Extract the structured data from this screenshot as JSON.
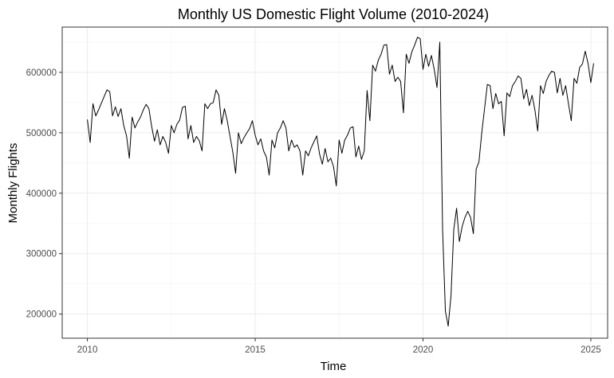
{
  "chart_data": {
    "type": "line",
    "title": "Monthly US Domestic Flight Volume (2010-2024)",
    "xlabel": "Time",
    "ylabel": "Monthly Flights",
    "xlim": [
      2009.25,
      2025.5
    ],
    "ylim": [
      160000,
      675000
    ],
    "x_ticks": [
      2010,
      2015,
      2020,
      2025
    ],
    "x_tick_labels": [
      "2010",
      "2015",
      "2020",
      "2025"
    ],
    "y_ticks": [
      200000,
      300000,
      400000,
      500000,
      600000
    ],
    "y_tick_labels": [
      "200000",
      "300000",
      "400000",
      "500000",
      "600000"
    ],
    "grid": true,
    "start": "2010-01",
    "frequency": "monthly",
    "series": [
      {
        "color": "#000000",
        "values": [
          522000,
          484000,
          548000,
          528000,
          538000,
          549000,
          560000,
          571000,
          568000,
          528000,
          543000,
          527000,
          540000,
          512000,
          495000,
          458000,
          526000,
          508000,
          518000,
          526000,
          538000,
          547000,
          540000,
          510000,
          486000,
          505000,
          480000,
          494000,
          484000,
          466000,
          512000,
          500000,
          514000,
          521000,
          542000,
          544000,
          490000,
          512000,
          484000,
          494000,
          487000,
          470000,
          548000,
          540000,
          548000,
          550000,
          571000,
          562000,
          514000,
          540000,
          520000,
          494000,
          468000,
          433000,
          500000,
          482000,
          492000,
          500000,
          507000,
          520000,
          496000,
          480000,
          490000,
          470000,
          460000,
          430000,
          488000,
          475000,
          500000,
          508000,
          520000,
          508000,
          470000,
          488000,
          476000,
          480000,
          470000,
          430000,
          470000,
          462000,
          475000,
          485000,
          495000,
          465000,
          448000,
          474000,
          452000,
          458000,
          444000,
          412000,
          488000,
          466000,
          488000,
          496000,
          508000,
          510000,
          460000,
          478000,
          456000,
          470000,
          570000,
          520000,
          612000,
          602000,
          620000,
          630000,
          645000,
          646000,
          597000,
          612000,
          585000,
          592000,
          585000,
          533000,
          630000,
          615000,
          634000,
          645000,
          658000,
          656000,
          605000,
          630000,
          610000,
          628000,
          605000,
          575000,
          650000,
          340000,
          205000,
          180000,
          230000,
          340000,
          375000,
          320000,
          345000,
          360000,
          370000,
          360000,
          333000,
          440000,
          452000,
          500000,
          540000,
          580000,
          578000,
          540000,
          565000,
          548000,
          552000,
          495000,
          566000,
          560000,
          578000,
          585000,
          594000,
          590000,
          556000,
          572000,
          545000,
          562000,
          538000,
          503000,
          578000,
          565000,
          585000,
          595000,
          602000,
          600000,
          566000,
          590000,
          562000,
          578000,
          548000,
          520000,
          590000,
          582000,
          608000,
          614000,
          635000,
          615000,
          583000,
          615000
        ]
      }
    ]
  }
}
